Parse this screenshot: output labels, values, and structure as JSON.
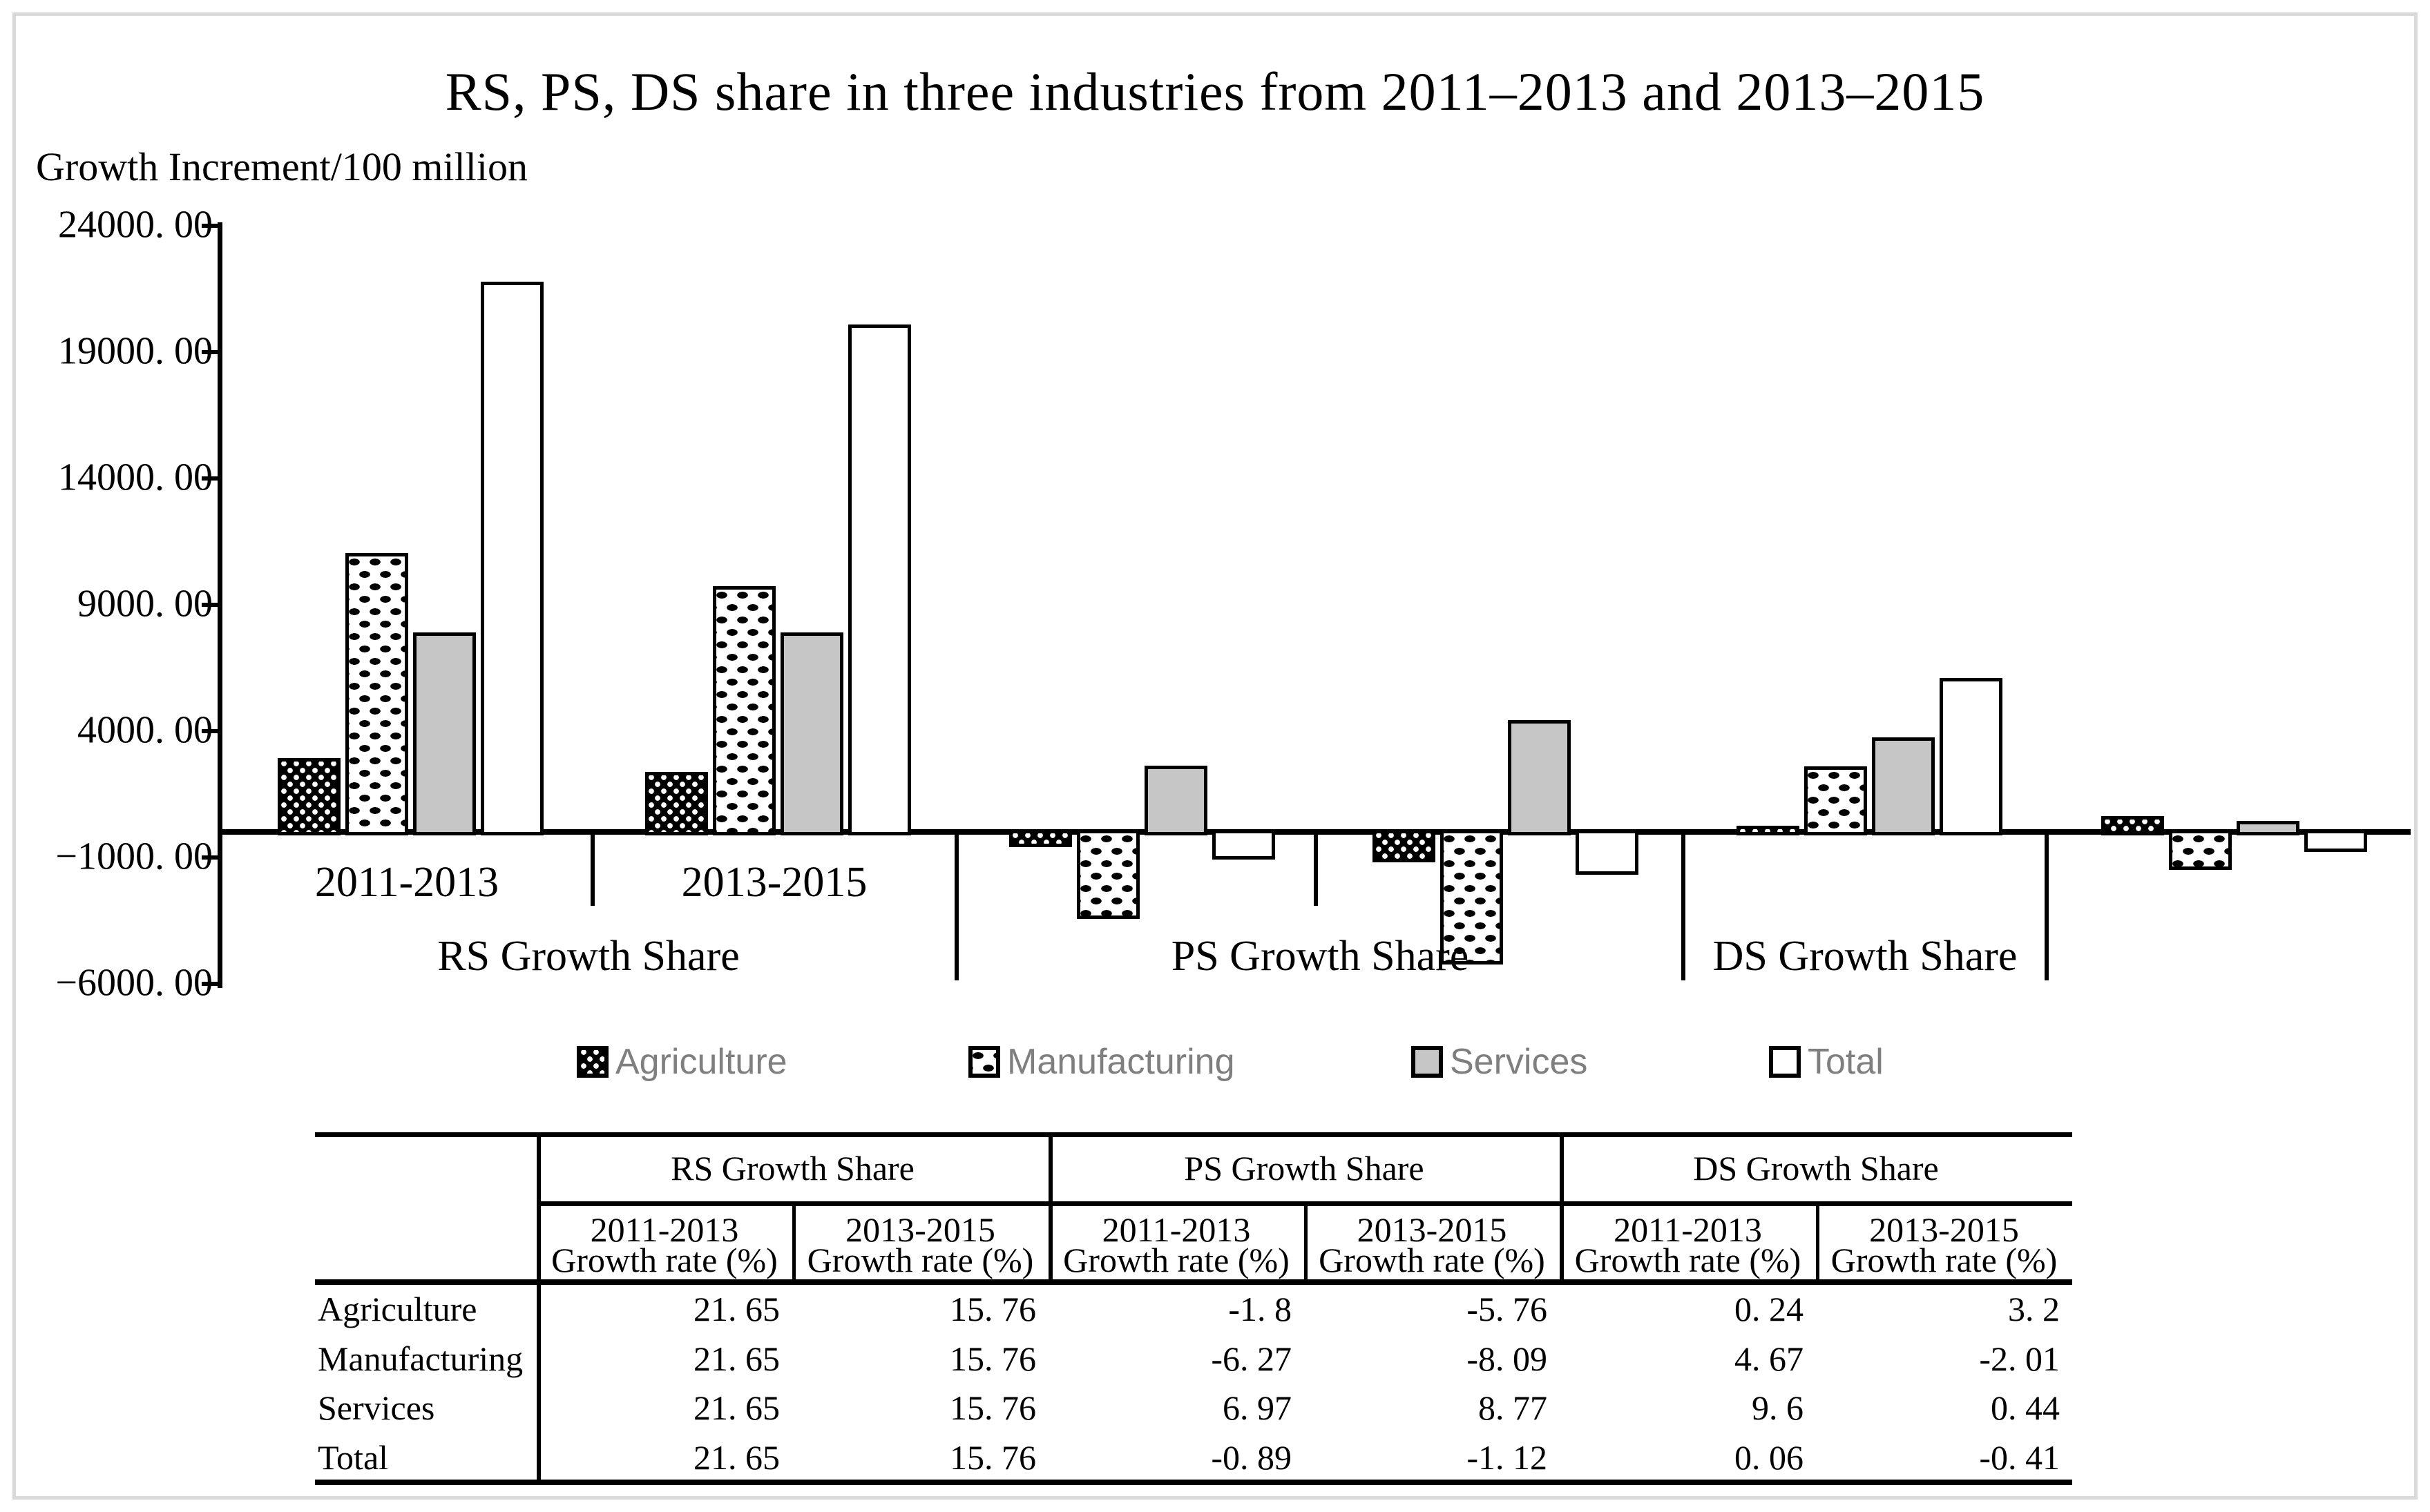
{
  "title": "RS, PS, DS share in three industries from 2011–2013 and 2013–2015",
  "y_axis": {
    "label": "Growth Increment/100 million",
    "tick_labels": [
      "24000. 00",
      "19000. 00",
      "14000. 00",
      "9000. 00",
      "4000. 00",
      "−1000. 00",
      "−6000. 00"
    ],
    "tick_values": [
      24000,
      19000,
      14000,
      9000,
      4000,
      -1000,
      -6000
    ]
  },
  "x_axis": {
    "period_labels": [
      "2011-2013",
      "2013-2015"
    ],
    "panel_labels": [
      "RS Growth Share",
      "PS Growth Share",
      "DS Growth Share"
    ]
  },
  "legend": {
    "items": [
      {
        "label": "Agriculture",
        "swatch": "black-grid-pattern"
      },
      {
        "label": "Manufacturing",
        "swatch": "white-dotted-pattern"
      },
      {
        "label": "Services",
        "swatch": "solid-gray"
      },
      {
        "label": "Total",
        "swatch": "solid-white"
      }
    ],
    "text_color": "#7f7f7f"
  },
  "chart_data": {
    "type": "bar",
    "title": "RS, PS, DS share in three industries from 2011–2013 and 2013–2015",
    "ylabel": "Growth Increment/100 million",
    "ylim": [
      -6000,
      24000
    ],
    "ytick_interval": 5000,
    "grid": false,
    "legend_position": "bottom",
    "units": "Growth Increment/100 million",
    "values_estimated_from_pixels": true,
    "series_names": [
      "Agriculture",
      "Manufacturing",
      "Services",
      "Total"
    ],
    "groups": [
      {
        "panel": "RS Growth Share",
        "period": "2011-2013",
        "period_label_shown": true,
        "values": [
          2800,
          10900,
          7750,
          21650
        ]
      },
      {
        "panel": "RS Growth Share",
        "period": "2013-2015",
        "period_label_shown": true,
        "values": [
          2250,
          9600,
          7750,
          19950
        ]
      },
      {
        "panel": "PS Growth Share",
        "period": "2011-2013",
        "period_label_shown": false,
        "values": [
          -400,
          -3250,
          2500,
          -900
        ]
      },
      {
        "panel": "PS Growth Share",
        "period": "2013-2015",
        "period_label_shown": false,
        "values": [
          -1000,
          -5050,
          4300,
          -1500
        ]
      },
      {
        "panel": "DS Growth Share",
        "period": "2011-2013",
        "period_label_shown": false,
        "values": [
          100,
          2450,
          3600,
          5950
        ]
      },
      {
        "panel": "DS Growth Share",
        "period": "2013-2015",
        "period_label_shown": false,
        "values": [
          500,
          -1300,
          300,
          -600
        ]
      }
    ]
  },
  "table": {
    "col_groups": [
      "RS Growth Share",
      "PS Growth Share",
      "DS Growth Share"
    ],
    "sub_header_periods": [
      "2011-2013",
      "2013-2015",
      "2011-2013",
      "2013-2015",
      "2011-2013",
      "2013-2015"
    ],
    "sub_header_metric": "Growth rate (%)",
    "rows": [
      {
        "label": "Agriculture",
        "values": [
          "21. 65",
          "15. 76",
          "-1. 8",
          "-5. 76",
          "0. 24",
          "3. 2"
        ]
      },
      {
        "label": "Manufacturing",
        "values": [
          "21. 65",
          "15. 76",
          "-6. 27",
          "-8. 09",
          "4. 67",
          "-2. 01"
        ]
      },
      {
        "label": "Services",
        "values": [
          "21. 65",
          "15. 76",
          "6. 97",
          "8. 77",
          "9. 6",
          "0. 44"
        ]
      },
      {
        "label": "Total",
        "values": [
          "21. 65",
          "15. 76",
          "-0. 89",
          "-1. 12",
          "0. 06",
          "-0. 41"
        ]
      }
    ]
  }
}
